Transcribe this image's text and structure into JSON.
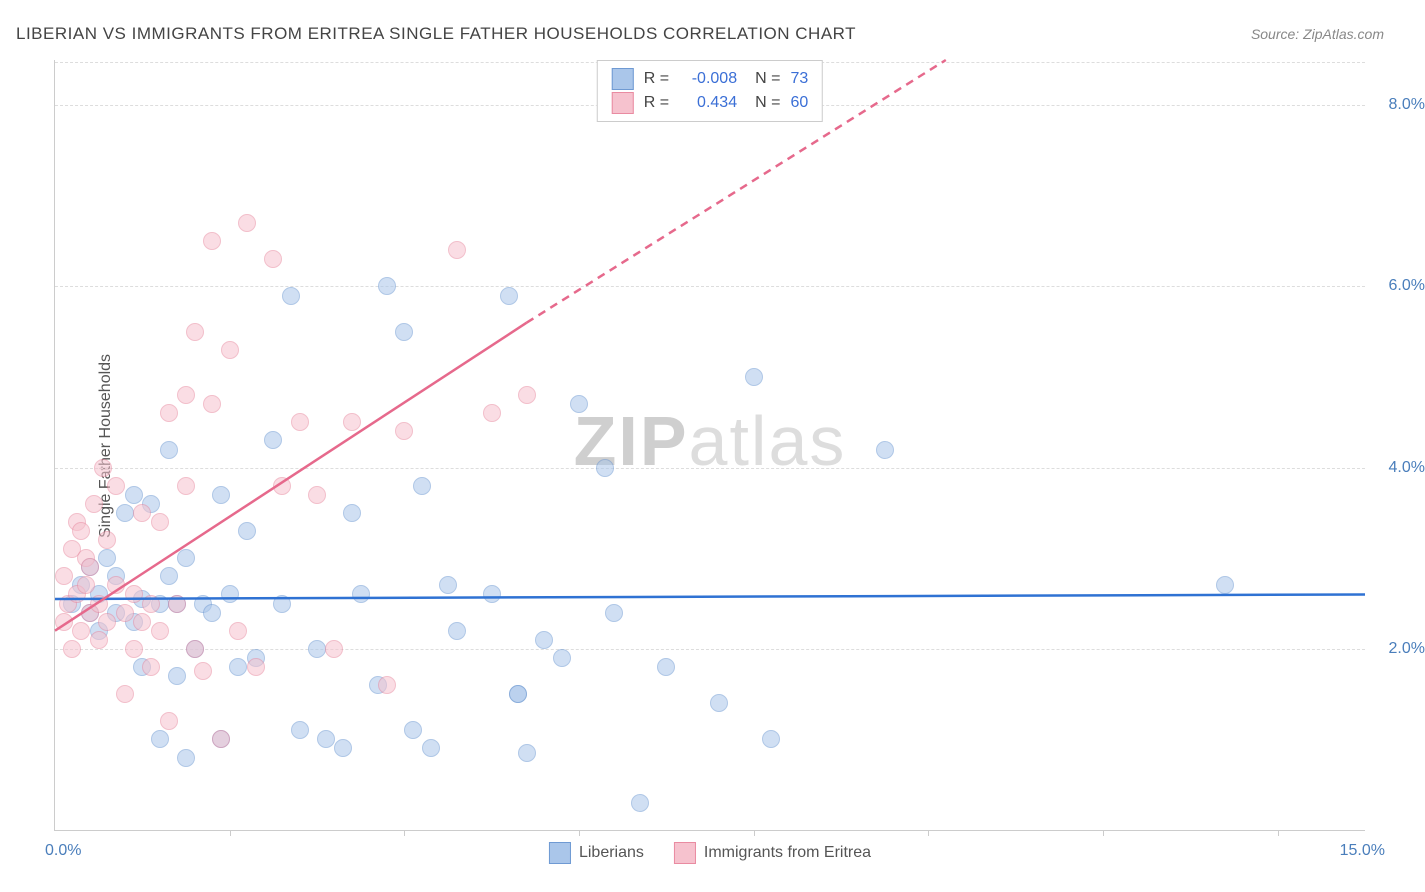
{
  "title": "LIBERIAN VS IMMIGRANTS FROM ERITREA SINGLE FATHER HOUSEHOLDS CORRELATION CHART",
  "source": "Source: ZipAtlas.com",
  "y_axis_label": "Single Father Households",
  "watermark_a": "ZIP",
  "watermark_b": "atlas",
  "chart": {
    "type": "scatter",
    "xlim": [
      0,
      15
    ],
    "ylim": [
      0,
      8.5
    ],
    "x_ticks": [
      0,
      2,
      4,
      6,
      8,
      10,
      12,
      14
    ],
    "x_tick_labels": {
      "0": "0.0%",
      "15": "15.0%"
    },
    "y_ticks": [
      2,
      4,
      6,
      8
    ],
    "y_tick_labels": {
      "2": "2.0%",
      "4": "4.0%",
      "6": "6.0%",
      "8": "8.0%"
    },
    "background_color": "#ffffff",
    "grid_color": "#dddddd",
    "marker_radius": 8,
    "series": [
      {
        "name": "Liberians",
        "color_fill": "#aac6ea",
        "color_stroke": "#6f9ad3",
        "R": "-0.008",
        "N": "73",
        "trend": {
          "x1": 0,
          "y1": 2.55,
          "x2": 15,
          "y2": 2.6,
          "color": "#2f72d3",
          "width": 2.5,
          "dash": "none"
        },
        "points": [
          [
            0.2,
            2.5
          ],
          [
            0.3,
            2.7
          ],
          [
            0.4,
            2.4
          ],
          [
            0.4,
            2.9
          ],
          [
            0.5,
            2.6
          ],
          [
            0.5,
            2.2
          ],
          [
            0.6,
            3.0
          ],
          [
            0.7,
            2.4
          ],
          [
            0.7,
            2.8
          ],
          [
            0.8,
            3.5
          ],
          [
            0.9,
            2.3
          ],
          [
            0.9,
            3.7
          ],
          [
            1.0,
            2.55
          ],
          [
            1.0,
            1.8
          ],
          [
            1.1,
            3.6
          ],
          [
            1.2,
            2.5
          ],
          [
            1.2,
            1.0
          ],
          [
            1.3,
            2.8
          ],
          [
            1.3,
            4.2
          ],
          [
            1.4,
            2.5
          ],
          [
            1.4,
            1.7
          ],
          [
            1.5,
            3.0
          ],
          [
            1.5,
            0.8
          ],
          [
            1.6,
            2.0
          ],
          [
            1.7,
            2.5
          ],
          [
            1.8,
            2.4
          ],
          [
            1.9,
            3.7
          ],
          [
            1.9,
            1.0
          ],
          [
            2.0,
            2.6
          ],
          [
            2.1,
            1.8
          ],
          [
            2.2,
            3.3
          ],
          [
            2.3,
            1.9
          ],
          [
            2.5,
            4.3
          ],
          [
            2.6,
            2.5
          ],
          [
            2.7,
            5.9
          ],
          [
            2.8,
            1.1
          ],
          [
            3.0,
            2.0
          ],
          [
            3.1,
            1.0
          ],
          [
            3.3,
            0.9
          ],
          [
            3.4,
            3.5
          ],
          [
            3.5,
            2.6
          ],
          [
            3.7,
            1.6
          ],
          [
            3.8,
            6.0
          ],
          [
            4.0,
            5.5
          ],
          [
            4.1,
            1.1
          ],
          [
            4.2,
            3.8
          ],
          [
            4.3,
            0.9
          ],
          [
            4.5,
            2.7
          ],
          [
            4.6,
            2.2
          ],
          [
            5.0,
            2.6
          ],
          [
            5.2,
            5.9
          ],
          [
            5.3,
            1.5
          ],
          [
            5.3,
            1.5
          ],
          [
            5.4,
            0.85
          ],
          [
            5.6,
            2.1
          ],
          [
            5.8,
            1.9
          ],
          [
            6.0,
            4.7
          ],
          [
            6.3,
            4.0
          ],
          [
            6.4,
            2.4
          ],
          [
            6.7,
            0.3
          ],
          [
            7.0,
            1.8
          ],
          [
            7.6,
            1.4
          ],
          [
            8.0,
            5.0
          ],
          [
            8.2,
            1.0
          ],
          [
            9.5,
            4.2
          ],
          [
            13.4,
            2.7
          ]
        ]
      },
      {
        "name": "Immigrants from Eritrea",
        "color_fill": "#f6c2ce",
        "color_stroke": "#e98ba1",
        "R": "0.434",
        "N": "60",
        "trend": {
          "x1": 0,
          "y1": 2.2,
          "x2": 5.4,
          "y2": 5.6,
          "x3": 10.2,
          "y3": 8.5,
          "color": "#e6698c",
          "width": 2.5
        },
        "points": [
          [
            0.1,
            2.3
          ],
          [
            0.1,
            2.8
          ],
          [
            0.15,
            2.5
          ],
          [
            0.2,
            3.1
          ],
          [
            0.2,
            2.0
          ],
          [
            0.25,
            2.6
          ],
          [
            0.25,
            3.4
          ],
          [
            0.3,
            2.2
          ],
          [
            0.3,
            3.3
          ],
          [
            0.35,
            2.7
          ],
          [
            0.35,
            3.0
          ],
          [
            0.4,
            2.4
          ],
          [
            0.4,
            2.9
          ],
          [
            0.45,
            3.6
          ],
          [
            0.5,
            2.1
          ],
          [
            0.5,
            2.5
          ],
          [
            0.55,
            4.0
          ],
          [
            0.6,
            2.3
          ],
          [
            0.6,
            3.2
          ],
          [
            0.7,
            2.7
          ],
          [
            0.7,
            3.8
          ],
          [
            0.8,
            2.4
          ],
          [
            0.8,
            1.5
          ],
          [
            0.9,
            2.0
          ],
          [
            0.9,
            2.6
          ],
          [
            1.0,
            2.3
          ],
          [
            1.0,
            3.5
          ],
          [
            1.1,
            2.5
          ],
          [
            1.1,
            1.8
          ],
          [
            1.2,
            2.2
          ],
          [
            1.2,
            3.4
          ],
          [
            1.3,
            4.6
          ],
          [
            1.3,
            1.2
          ],
          [
            1.4,
            2.5
          ],
          [
            1.5,
            4.8
          ],
          [
            1.5,
            3.8
          ],
          [
            1.6,
            2.0
          ],
          [
            1.6,
            5.5
          ],
          [
            1.7,
            1.75
          ],
          [
            1.8,
            4.7
          ],
          [
            1.8,
            6.5
          ],
          [
            1.9,
            1.0
          ],
          [
            2.0,
            5.3
          ],
          [
            2.1,
            2.2
          ],
          [
            2.2,
            6.7
          ],
          [
            2.3,
            1.8
          ],
          [
            2.5,
            6.3
          ],
          [
            2.6,
            3.8
          ],
          [
            2.8,
            4.5
          ],
          [
            3.0,
            3.7
          ],
          [
            3.2,
            2.0
          ],
          [
            3.4,
            4.5
          ],
          [
            3.8,
            1.6
          ],
          [
            4.0,
            4.4
          ],
          [
            4.6,
            6.4
          ],
          [
            5.0,
            4.6
          ],
          [
            5.4,
            4.8
          ]
        ]
      }
    ]
  }
}
